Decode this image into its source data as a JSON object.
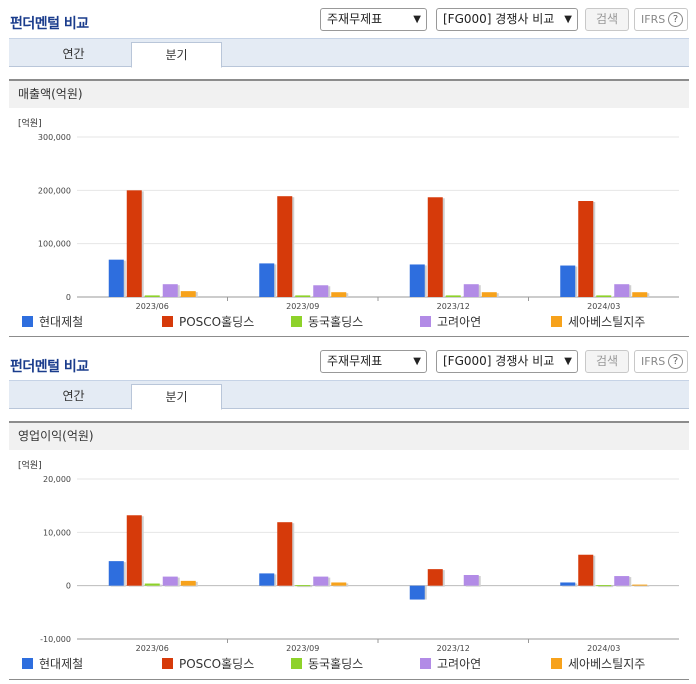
{
  "header": {
    "title": "펀더멘털 비교",
    "select_statement": "주재무제표",
    "select_compare": "[FG000] 경쟁사 비교",
    "search_label": "검색",
    "ifrs_label": "IFRS",
    "help_glyph": "?"
  },
  "tabs": [
    {
      "label": "연간",
      "active": false
    },
    {
      "label": "분기",
      "active": true
    }
  ],
  "legend": [
    {
      "name": "현대제철",
      "color": "#2e6ede"
    },
    {
      "name": "POSCO홀딩스",
      "color": "#d63a0a"
    },
    {
      "name": "동국홀딩스",
      "color": "#8ed22a"
    },
    {
      "name": "고려아연",
      "color": "#b28be6"
    },
    {
      "name": "세아베스틸지주",
      "color": "#f7a21b"
    }
  ],
  "chart_data": [
    {
      "type": "bar",
      "title": "매출액(억원)",
      "unit_label": "[억원]",
      "categories": [
        "2023/06",
        "2023/09",
        "2023/12",
        "2024/03"
      ],
      "ylim": [
        0,
        300000
      ],
      "ticks": [
        0,
        100000,
        200000,
        300000
      ],
      "tick_labels": [
        "0",
        "100,000",
        "200,000",
        "300,000"
      ],
      "grid": true,
      "series": [
        {
          "name": "현대제철",
          "values": [
            70000,
            63000,
            61000,
            59000
          ]
        },
        {
          "name": "POSCO홀딩스",
          "values": [
            200000,
            189000,
            187000,
            180000
          ]
        },
        {
          "name": "동국홀딩스",
          "values": [
            3000,
            3000,
            3000,
            3000
          ]
        },
        {
          "name": "고려아연",
          "values": [
            24000,
            22000,
            24000,
            24000
          ]
        },
        {
          "name": "세아베스틸지주",
          "values": [
            11000,
            9000,
            9000,
            9000
          ]
        }
      ]
    },
    {
      "type": "bar",
      "title": "영업이익(억원)",
      "unit_label": "[억원]",
      "categories": [
        "2023/06",
        "2023/09",
        "2023/12",
        "2024/03"
      ],
      "ylim": [
        -10000,
        20000
      ],
      "ticks": [
        -10000,
        0,
        10000,
        20000
      ],
      "tick_labels": [
        "-10,000",
        "0",
        "10,000",
        "20,000"
      ],
      "grid": true,
      "series": [
        {
          "name": "현대제철",
          "values": [
            4600,
            2300,
            -2600,
            600
          ]
        },
        {
          "name": "POSCO홀딩스",
          "values": [
            13200,
            11900,
            3100,
            5800
          ]
        },
        {
          "name": "동국홀딩스",
          "values": [
            400,
            100,
            0,
            100
          ]
        },
        {
          "name": "고려아연",
          "values": [
            1700,
            1700,
            2000,
            1800
          ]
        },
        {
          "name": "세아베스틸지주",
          "values": [
            900,
            600,
            0,
            200
          ]
        }
      ]
    }
  ]
}
